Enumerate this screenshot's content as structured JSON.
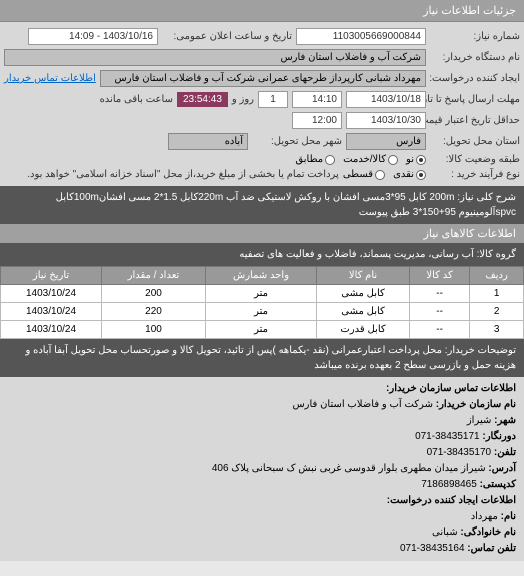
{
  "header": {
    "title": "جزئیات اطلاعات نیاز"
  },
  "form": {
    "need_number_label": "شماره نیاز:",
    "need_number": "1103005669000844",
    "datetime_label": "تاریخ و ساعت اعلان عمومی:",
    "datetime": "1403/10/16 - 14:09",
    "buyer_device_label": "نام دستگاه خریدار:",
    "buyer_device": "شرکت آب و فاضلاب استان فارس",
    "requester_label": "ایجاد کننده درخواست:",
    "requester": "مهرداد شبانی کارپرداز طرحهای عمرانی   شرکت آب و فاضلاب استان فارس",
    "contact_link": "اطلاعات تماس خریدار",
    "deadline_label": "مهلت ارسال پاسخ تا تاریخ:",
    "deadline_date": "1403/10/18",
    "deadline_time": "14:10",
    "days_label": "روز و",
    "days": "1",
    "countdown": "23:54:43",
    "remain_label": "ساعت باقی مانده",
    "validity_label": "حداقل تاریخ اعتبار قیمت: تا تاریخ:",
    "validity_date": "1403/10/30",
    "validity_time": "12:00",
    "delivery_province_label": "استان محل تحویل:",
    "delivery_province": "فارس",
    "delivery_city_label": "شهر محل تحویل:",
    "delivery_city": "آباده",
    "condition_label": "طبقه وضعیت کالا:",
    "radio_new": "نو",
    "radio_used": "کالا/خدمت",
    "radio_match": "مطابق",
    "buy_type_label": "نوع فرآیند خرید :",
    "radio_cash": "نقدی",
    "radio_installment": "قسطی",
    "payment_note": "پرداخت تمام یا بخشی از مبلغ خرید،از محل \"اسناد خزانه اسلامی\" خواهد بود."
  },
  "desc": {
    "label": "شرح کلی نیاز:",
    "text": "200m کابل 95*3مسی افشان با روکش لاستیکی ضد آب 220mکابل 1.5*2 مسی افشان100mکابل spvcآلومینیوم 95+150*3 طبق پیوست"
  },
  "group": {
    "title": "اطلاعات کالاهای نیاز",
    "label": "گروه کالا:",
    "text": "آب رسانی، مدیریت پسماند، فاضلاب و فعالیت های تصفیه"
  },
  "table": {
    "headers": [
      "ردیف",
      "کد کالا",
      "نام کالا",
      "واحد شمارش",
      "تعداد / مقدار",
      "تاریخ نیاز"
    ],
    "rows": [
      [
        "1",
        "--",
        "کابل مشی",
        "متر",
        "200",
        "1403/10/24"
      ],
      [
        "2",
        "--",
        "کابل مشی",
        "متر",
        "220",
        "1403/10/24"
      ],
      [
        "3",
        "--",
        "کابل قدرت",
        "متر",
        "100",
        "1403/10/24"
      ]
    ]
  },
  "notes": {
    "label": "توضیحات خریدار:",
    "text": "محل پرداخت اعتبارعمرانی (نقد -یکماهه )پس از تائید، تحویل کالا و صورتحساب محل تحویل آبفا آباده و هزینه حمل و بازرسی سطح 2 بعهده برنده میباشد"
  },
  "contact": {
    "title": "اطلاعات تماس سازمان خریدار:",
    "org_label": "نام سازمان خریدار:",
    "org": "شرکت آب و فاضلاب استان فارس",
    "city_label": "شهر:",
    "city": "شیراز",
    "fax_label": "دورنگار:",
    "fax": "38435171-071",
    "phone_label": "تلفن:",
    "phone": "38435170-071",
    "address_label": "آدرس:",
    "address": "شیراز میدان مطهری بلوار قدوسی غربی نبش ک سبحانی پلاک 406",
    "postal_label": "کدپستی:",
    "postal": "7186898465",
    "creator_title": "اطلاعات ایجاد کننده درخواست:",
    "name_label": "نام:",
    "name": "مهرداد",
    "family_label": "نام خانوادگی:",
    "family": "شبانی",
    "tel_label": "تلفن تماس:",
    "tel": "38435164-071"
  }
}
